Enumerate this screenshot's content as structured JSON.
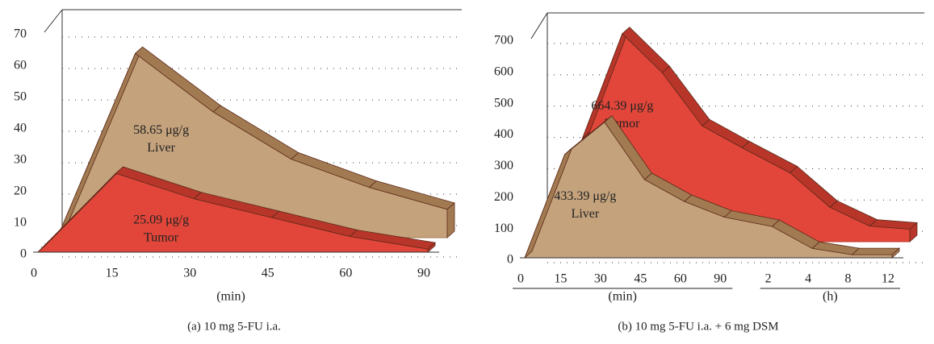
{
  "chart_data": [
    {
      "type": "area3d",
      "category_groups": [
        {
          "label": "(min)",
          "categories": [
            0,
            15,
            30,
            45,
            60,
            90
          ]
        }
      ],
      "series": [
        {
          "name": "Liver",
          "color": "#c4a27c",
          "edge": "#a27a52",
          "values": [
            0,
            58.65,
            40,
            25,
            16,
            9
          ],
          "value_labels": [
            null,
            "58.65 μg/g",
            null,
            null,
            null,
            null
          ]
        },
        {
          "name": "Tumor",
          "color": "#e2463a",
          "edge": "#b8352a",
          "values": [
            0,
            25.09,
            17,
            11,
            5,
            1
          ],
          "value_labels": [
            null,
            "25.09 μg/g",
            null,
            null,
            null,
            null
          ]
        }
      ],
      "ylim": [
        0,
        70
      ],
      "yticks": [
        0,
        10,
        20,
        30,
        40,
        50,
        60,
        70
      ],
      "grid": true,
      "caption": "(a)  10 mg 5-FU i.a."
    },
    {
      "type": "area3d",
      "category_groups": [
        {
          "label": "(min)",
          "categories": [
            0,
            15,
            30,
            45,
            60,
            90
          ]
        },
        {
          "label": "(h)",
          "categories": [
            2,
            4,
            8,
            12
          ]
        }
      ],
      "series": [
        {
          "name": "Tumor",
          "color": "#e2463a",
          "edge": "#b8352a",
          "values": [
            0,
            330,
            664.39,
            540,
            370,
            300,
            220,
            110,
            50,
            40
          ],
          "value_labels": [
            null,
            null,
            "664.39 μg/g",
            null,
            null,
            null,
            null,
            null,
            null,
            null
          ]
        },
        {
          "name": "Liver",
          "color": "#c4a27c",
          "edge": "#a27a52",
          "values": [
            0,
            330,
            433.39,
            250,
            180,
            130,
            100,
            30,
            10,
            10
          ],
          "value_labels": [
            null,
            null,
            "433.39 μg/g",
            null,
            null,
            null,
            null,
            null,
            null,
            null
          ]
        }
      ],
      "ylim": [
        0,
        700
      ],
      "yticks": [
        0,
        100,
        200,
        300,
        400,
        500,
        600,
        700
      ],
      "grid": true,
      "caption": "(b)  10 mg 5-FU i.a. + 6 mg DSM"
    }
  ]
}
